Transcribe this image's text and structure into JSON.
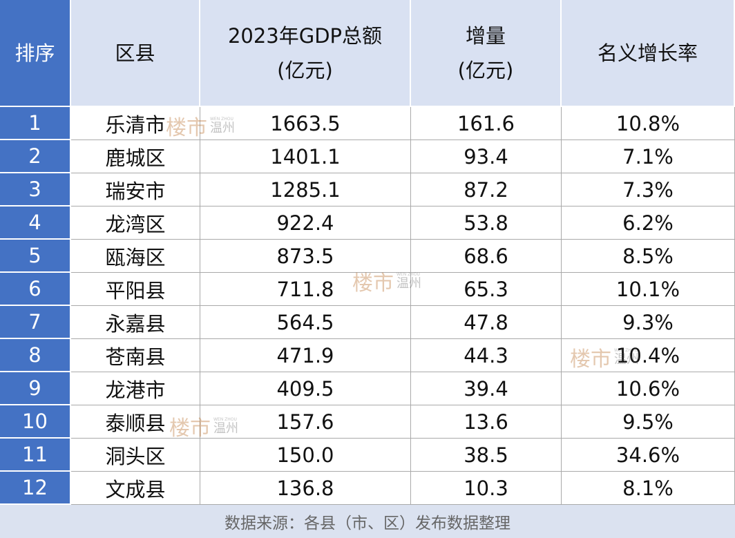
{
  "table": {
    "header": [
      [
        "排序"
      ],
      [
        "区县"
      ],
      [
        "2023年GDP总额",
        "(亿元)"
      ],
      [
        "增量",
        "(亿元)"
      ],
      [
        "名义增长率"
      ]
    ],
    "rows": [
      [
        "1",
        "乐清市",
        "1663.5",
        "161.6",
        "10.8%"
      ],
      [
        "2",
        "鹿城区",
        "1401.1",
        "93.4",
        "7.1%"
      ],
      [
        "3",
        "瑞安市",
        "1285.1",
        "87.2",
        "7.3%"
      ],
      [
        "4",
        "龙湾区",
        "922.4",
        "53.8",
        "6.2%"
      ],
      [
        "5",
        "瓯海区",
        "873.5",
        "68.6",
        "8.5%"
      ],
      [
        "6",
        "平阳县",
        "711.8",
        "65.3",
        "10.1%"
      ],
      [
        "7",
        "永嘉县",
        "564.5",
        "47.8",
        "9.3%"
      ],
      [
        "8",
        "苍南县",
        "471.9",
        "44.3",
        "10.4%"
      ],
      [
        "9",
        "龙港市",
        "409.5",
        "39.4",
        "10.6%"
      ],
      [
        "10",
        "泰顺县",
        "157.6",
        "13.6",
        "9.5%"
      ],
      [
        "11",
        "洞头区",
        "150.0",
        "38.5",
        "34.6%"
      ],
      [
        "12",
        "文成县",
        "136.8",
        "10.3",
        "8.1%"
      ]
    ],
    "footer": "数据来源：各县（市、区）发布数据整理"
  },
  "watermark": {
    "logo": "楼市",
    "city": "温州",
    "en": "WEN ZHOU"
  }
}
